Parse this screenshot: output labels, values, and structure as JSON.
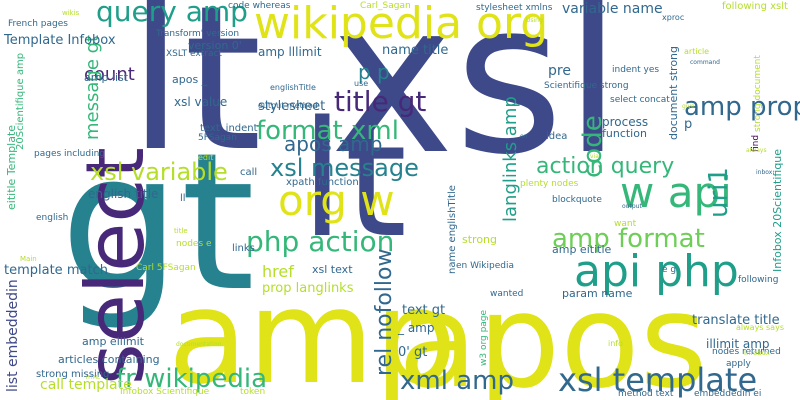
{
  "palette": {
    "yellow": "#dfe318",
    "lime": "#b5de2b",
    "green": "#6ece58",
    "emerald": "#35b779",
    "teal": "#1f9e89",
    "petrol": "#26828e",
    "blue": "#31688e",
    "indigo": "#3e4989",
    "violet": "#482878",
    "dark": "#440154"
  },
  "words": [
    "lt",
    "xsl",
    "gt",
    "lt",
    "amp",
    "apos",
    "select",
    "wikipedia org",
    "query amp",
    "org w",
    "api php",
    "w api",
    "php action",
    "xsl template",
    "xml amp",
    "fr wikipedia",
    "format xml",
    "amp format",
    "action query",
    "xsl variable",
    "xsl message",
    "title gt",
    "apos amp",
    "p p",
    "amp prop",
    "code",
    "uri1",
    "count",
    "message gt",
    "rel nofollow",
    "langlinks amp",
    "Template Infobox",
    "variable name",
    "name title",
    "p",
    "href",
    "prop langlinks",
    "call template",
    "english title",
    "stylesheet",
    "amp list",
    "apos _",
    "amp lllimit",
    "version 0'",
    "xsl value",
    "template match",
    "list embeddedin",
    "eititle Template",
    "pages including",
    "20Scientifique amp",
    "nodes e",
    "Carl 5FSagan",
    "Infobox Scientifique",
    "strong missing",
    "articles containing",
    "amp eilimit",
    "text gt",
    "_ amp",
    "0' gt",
    "translate title",
    "illimit amp",
    "nodes returned",
    "embeddedin ei",
    "method text",
    "apply",
    "always says",
    "param name",
    "en Wikipedia",
    "xsl text",
    "name englishTitle",
    "strong",
    "plenty nodes",
    "amp eititle",
    "Infobox 20Scientifique",
    "following",
    "e g",
    "want",
    "blockquote",
    "Scientifique strong",
    "select concat",
    "process",
    "function",
    "document strong",
    "pre",
    "idea",
    "links",
    "call",
    "xpath function",
    "englishTitle",
    "output method",
    "text' indent",
    "5FSagan",
    "edit",
    "english",
    "title",
    "Main",
    "documentation",
    "token",
    "info",
    "wanted",
    "w3 org page",
    "XSLT extract",
    "Transform' version",
    "stylesheet xmlns",
    "Carl_Sagan",
    "code whereas",
    "following xslt",
    "article",
    "xproc",
    "French pages",
    "wikis",
    "indent yes",
    "command",
    "give",
    "en",
    "find",
    "inbox",
    "use",
    "ll",
    "Using",
    "via",
    "output",
    "strong document",
    "Infobox",
    "always",
    "HTML"
  ]
}
